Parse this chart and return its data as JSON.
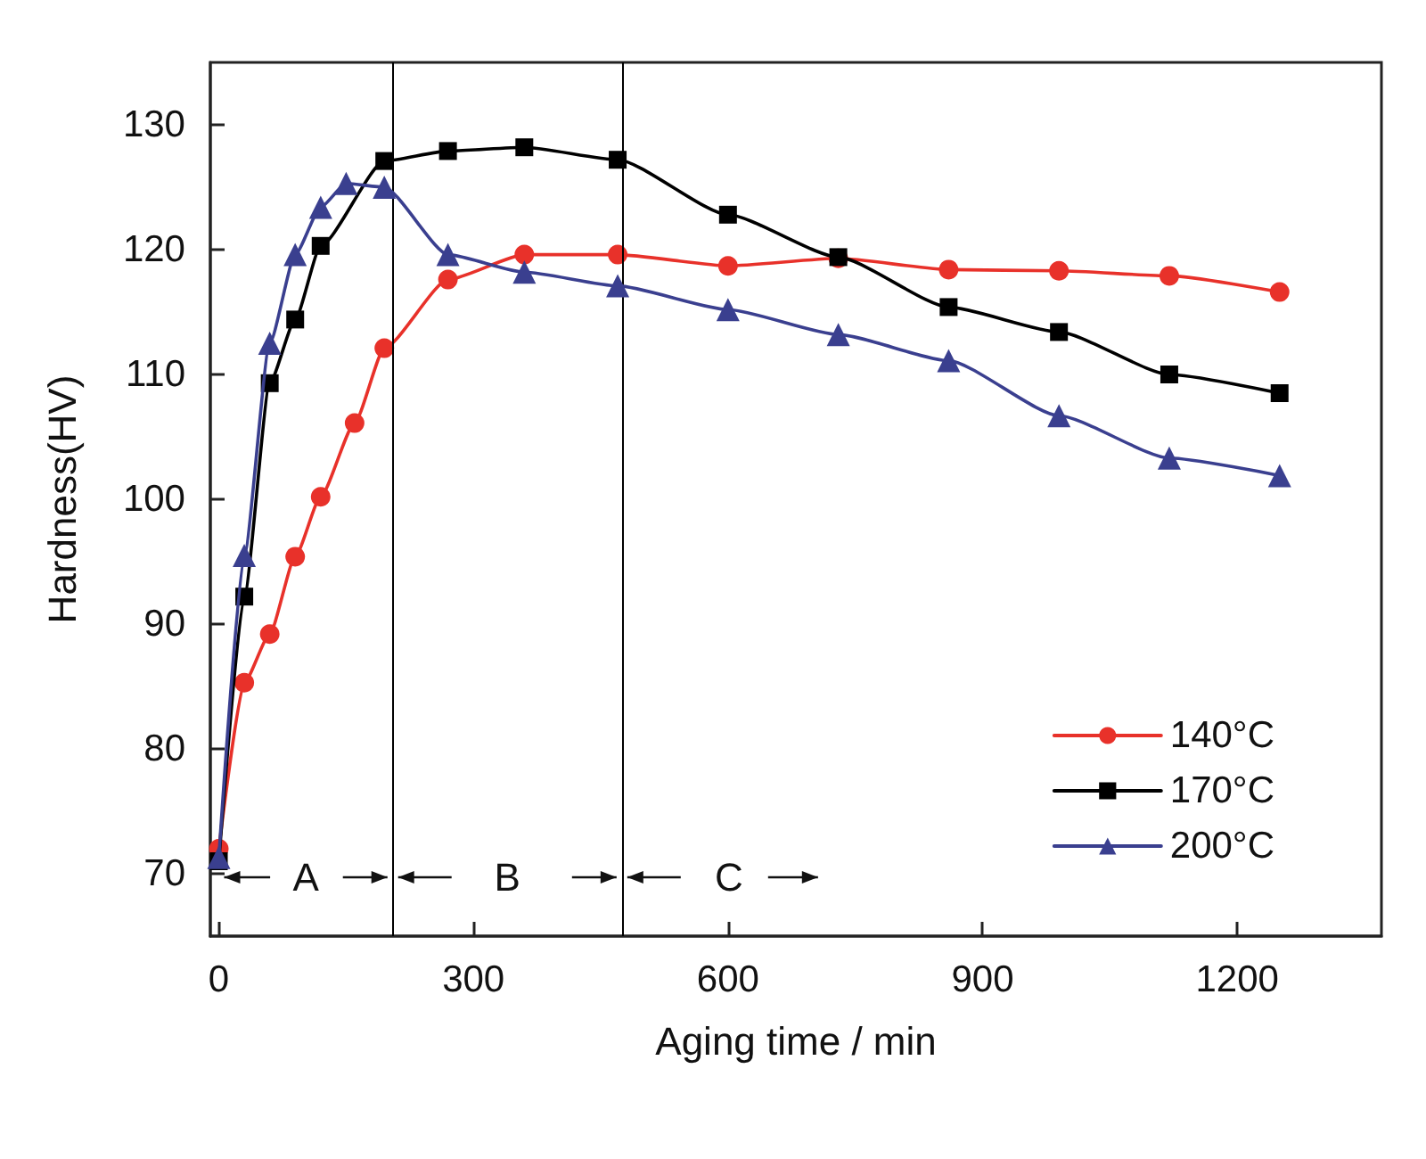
{
  "chart_data": {
    "type": "line",
    "xlabel": "Aging time / min",
    "ylabel": "Hardness(HV)",
    "xlim": [
      -10,
      1370
    ],
    "xticks": [
      0,
      300,
      600,
      900,
      1200
    ],
    "ylim": [
      65,
      135
    ],
    "yticks": [
      70,
      80,
      90,
      100,
      110,
      120,
      130
    ],
    "legend": "bottom right",
    "line_style": "solid",
    "series": [
      {
        "name": "140°C",
        "color": "#e8312a",
        "marker": "circle",
        "x": [
          0,
          30,
          60,
          90,
          120,
          160,
          195,
          270,
          360,
          470,
          600,
          730,
          860,
          990,
          1120,
          1250
        ],
        "values": [
          72,
          85.3,
          89.2,
          95.4,
          100.2,
          106.1,
          112.1,
          117.6,
          119.6,
          119.6,
          118.7,
          119.3,
          118.4,
          118.3,
          117.9,
          116.6
        ]
      },
      {
        "name": "170°C",
        "color": "#000000",
        "marker": "square",
        "x": [
          0,
          30,
          60,
          90,
          120,
          195,
          270,
          360,
          470,
          600,
          730,
          860,
          990,
          1120,
          1250
        ],
        "values": [
          71,
          92.2,
          109.3,
          114.4,
          120.3,
          127.1,
          127.9,
          128.2,
          127.2,
          122.8,
          119.4,
          115.4,
          113.4,
          110,
          108.5
        ]
      },
      {
        "name": "200°C",
        "color": "#3a3f8f",
        "marker": "triangle",
        "x": [
          0,
          30,
          60,
          90,
          120,
          150,
          195,
          270,
          360,
          470,
          600,
          730,
          860,
          990,
          1120,
          1250
        ],
        "values": [
          71.3,
          95.5,
          112.5,
          119.6,
          123.4,
          125.3,
          125,
          119.6,
          118.2,
          117.1,
          115.2,
          113.2,
          111.1,
          106.7,
          103.3,
          101.9
        ]
      }
    ],
    "ref_lines": [
      {
        "axis": "x",
        "value": 205,
        "color": "#000000"
      },
      {
        "axis": "x",
        "value": 475,
        "color": "#000000"
      }
    ],
    "annotations": [
      "A",
      "B",
      "C"
    ]
  }
}
